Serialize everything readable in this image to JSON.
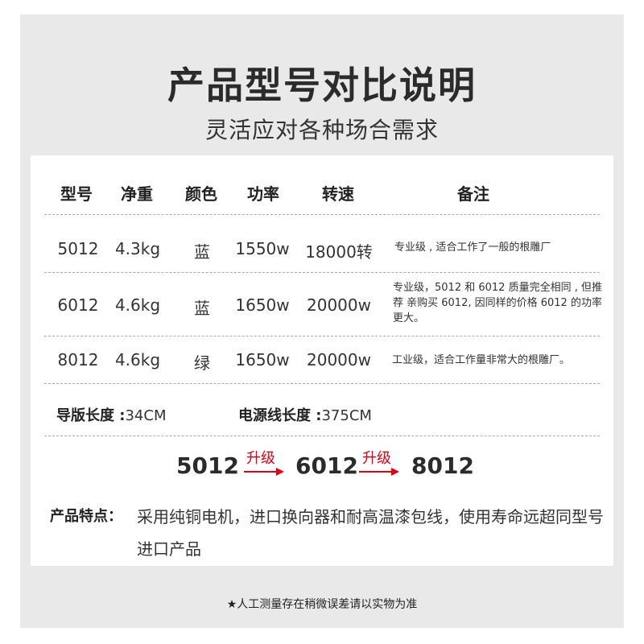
{
  "title": "产品型号对比说明",
  "subtitle": "灵活应对各种场合需求",
  "table": {
    "headers": [
      "型号",
      "净重",
      "颜色",
      "功率",
      "转速",
      "备注"
    ],
    "rows": [
      {
        "model": "5012",
        "weight": "4.3kg",
        "color": "蓝",
        "power": "1550w",
        "speed": "18000转",
        "note": "专业级 , 适合工作了一般的根雕厂"
      },
      {
        "model": "6012",
        "weight": "4.6kg",
        "color": "蓝",
        "power": "1650w",
        "speed": "20000w",
        "note": "专业级，5012 和 6012 质量完全相同 , 但推荐 亲购买 6012, 因同样的价格 6012 的功率更大。"
      },
      {
        "model": "8012",
        "weight": "4.6kg",
        "color": "绿",
        "power": "1650w",
        "speed": "20000w",
        "note": "工业级，适合工作量非常大的根雕厂。"
      }
    ]
  },
  "lengths": {
    "guide_label": "导版长度 :",
    "guide_value": "34CM",
    "cable_label": "电源线长度 :",
    "cable_value": "375CM"
  },
  "upgrade": {
    "models": [
      "5012",
      "6012",
      "8012"
    ],
    "label": "升级",
    "accent": "#e60012"
  },
  "features": {
    "label": "产品特点：",
    "text": "采用纯铜电机，进口换向器和耐高温漆包线，使用寿命远超同型号进口产品"
  },
  "footer": "★人工测量存在稍微误差请以实物为准"
}
